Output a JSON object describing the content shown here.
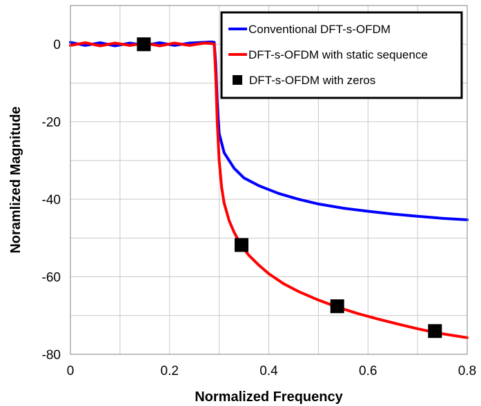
{
  "chart_data": {
    "type": "line",
    "title": "",
    "xlabel": "Normalized Frequency",
    "ylabel": "Noramlized Magnitude",
    "xlim": [
      0,
      0.8
    ],
    "ylim": [
      -80,
      10
    ],
    "x_ticks": [
      0,
      0.2,
      0.4,
      0.6,
      0.8
    ],
    "x_tick_labels": [
      "0",
      "0.2",
      "0.4",
      "0.6",
      "0.8"
    ],
    "y_ticks": [
      0,
      -20,
      -40,
      -60,
      -80
    ],
    "y_tick_labels": [
      "0",
      "-20",
      "-40",
      "-60",
      "-80"
    ],
    "x_minor_grid_step": 0.1,
    "y_minor_grid_step": 10,
    "grid": true,
    "legend_position": "top-right",
    "series": [
      {
        "name": "Conventional DFT-s-OFDM",
        "kind": "line",
        "color": "#0000ff",
        "x": [
          0,
          0.03,
          0.06,
          0.09,
          0.12,
          0.15,
          0.18,
          0.21,
          0.24,
          0.27,
          0.285,
          0.29,
          0.293,
          0.296,
          0.3,
          0.31,
          0.33,
          0.35,
          0.38,
          0.42,
          0.46,
          0.5,
          0.55,
          0.6,
          0.65,
          0.7,
          0.75,
          0.8
        ],
        "y": [
          0.5,
          -0.3,
          0.4,
          -0.4,
          0.3,
          -0.3,
          0.4,
          -0.3,
          0.3,
          0.5,
          0.6,
          0.5,
          -5,
          -15,
          -23,
          -28,
          -32,
          -34.5,
          -36.5,
          -38.5,
          -40,
          -41.2,
          -42.3,
          -43.1,
          -43.8,
          -44.4,
          -44.9,
          -45.3
        ]
      },
      {
        "name": "DFT-s-OFDM with static sequence",
        "kind": "line",
        "color": "#ff0000",
        "x": [
          0,
          0.03,
          0.06,
          0.09,
          0.12,
          0.15,
          0.18,
          0.21,
          0.24,
          0.27,
          0.285,
          0.29,
          0.293,
          0.296,
          0.3,
          0.305,
          0.31,
          0.32,
          0.33,
          0.345,
          0.36,
          0.38,
          0.4,
          0.43,
          0.46,
          0.5,
          0.54,
          0.58,
          0.62,
          0.66,
          0.7,
          0.74,
          0.77,
          0.8
        ],
        "y": [
          -0.3,
          0.4,
          -0.4,
          0.3,
          -0.3,
          0.3,
          -0.4,
          0.3,
          -0.3,
          0.3,
          0.2,
          0,
          -8,
          -20,
          -30,
          -37,
          -41,
          -45.5,
          -48.5,
          -52,
          -54.5,
          -57,
          -59.2,
          -61.8,
          -63.8,
          -66,
          -67.9,
          -69.5,
          -70.9,
          -72.2,
          -73.4,
          -74.5,
          -75.1,
          -75.7
        ]
      },
      {
        "name": "DFT-s-OFDM with zeros",
        "kind": "markers",
        "color": "#000000",
        "x": [
          0.148,
          0.345,
          0.538,
          0.735
        ],
        "y": [
          0,
          -51.8,
          -67.6,
          -74
        ]
      }
    ]
  }
}
